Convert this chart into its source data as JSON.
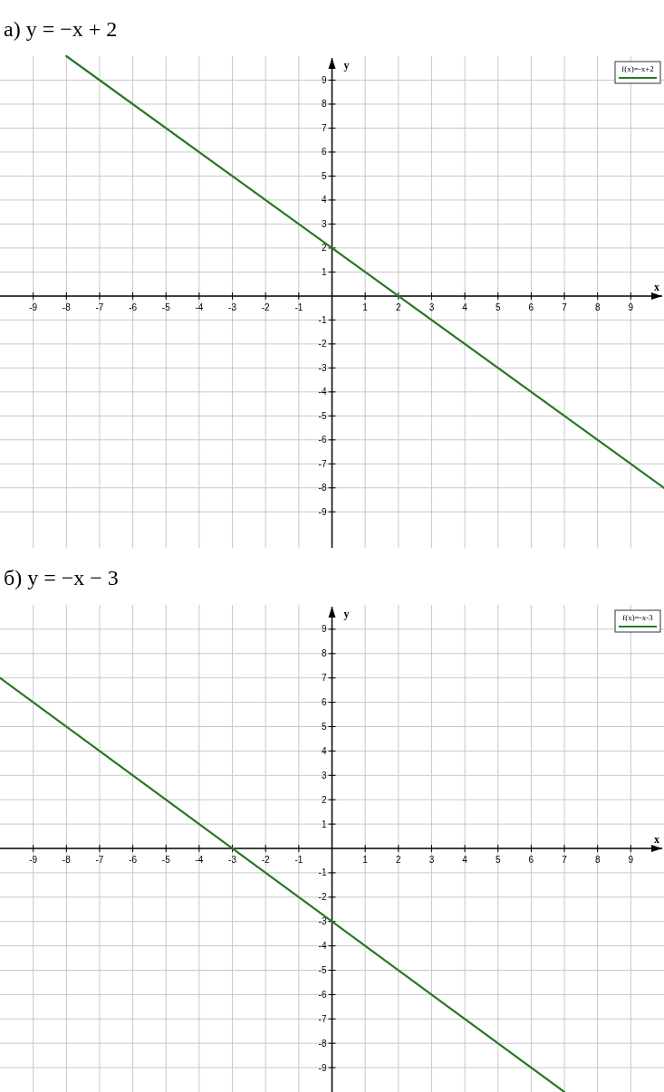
{
  "chart_data": [
    {
      "type": "line",
      "title": "а) y = −x + 2",
      "xlabel": "x",
      "ylabel": "y",
      "x": [
        -8,
        10
      ],
      "xlim": [
        -10,
        10
      ],
      "ylim": [
        -10.5,
        10
      ],
      "xticks": [
        -9,
        -8,
        -7,
        -6,
        -5,
        -4,
        -3,
        -2,
        -1,
        1,
        2,
        3,
        4,
        5,
        6,
        7,
        8,
        9
      ],
      "yticks": [
        -9,
        -8,
        -7,
        -6,
        -5,
        -4,
        -3,
        -2,
        -1,
        1,
        2,
        3,
        4,
        5,
        6,
        7,
        8,
        9
      ],
      "grid": true,
      "legend": "top right",
      "marker": "none",
      "line_style": "solid",
      "series": [
        {
          "name": "f(x)=-x+2",
          "color": "#267a26",
          "values": [
            10,
            -8
          ]
        }
      ]
    },
    {
      "type": "line",
      "title": "б) y = −x − 3",
      "xlabel": "x",
      "ylabel": "y",
      "x": [
        -10,
        7
      ],
      "xlim": [
        -10,
        10
      ],
      "ylim": [
        -10,
        10
      ],
      "xticks": [
        -9,
        -8,
        -7,
        -6,
        -5,
        -4,
        -3,
        -2,
        -1,
        1,
        2,
        3,
        4,
        5,
        6,
        7,
        8,
        9
      ],
      "yticks": [
        -9,
        -8,
        -7,
        -6,
        -5,
        -4,
        -3,
        -2,
        -1,
        1,
        2,
        3,
        4,
        5,
        6,
        7,
        8,
        9
      ],
      "grid": true,
      "legend": "top right",
      "marker": "none",
      "line_style": "solid",
      "series": [
        {
          "name": "f(x)=-x-3",
          "color": "#267a26",
          "values": [
            7,
            -10
          ]
        }
      ]
    }
  ]
}
